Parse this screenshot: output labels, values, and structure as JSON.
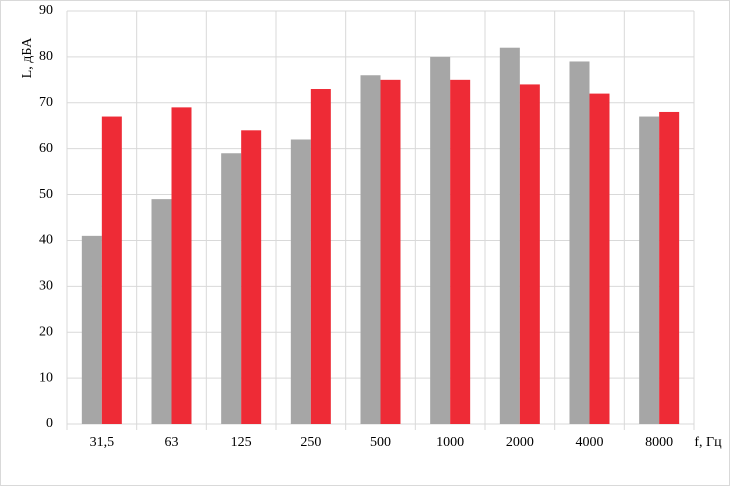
{
  "chart_data": {
    "type": "bar",
    "y_label": "L, дБА",
    "x_label": "f, Гц",
    "categories": [
      "31,5",
      "63",
      "125",
      "250",
      "500",
      "1000",
      "2000",
      "4000",
      "8000"
    ],
    "series": [
      {
        "color": "#a6a6a6",
        "values": [
          41,
          49,
          59,
          62,
          76,
          80,
          82,
          79,
          67
        ]
      },
      {
        "color": "#ee2b36",
        "values": [
          67,
          69,
          64,
          73,
          75,
          75,
          74,
          72,
          68
        ]
      }
    ],
    "ylim": [
      0,
      90
    ],
    "yticks": [
      0,
      10,
      20,
      30,
      40,
      50,
      60,
      70,
      80,
      90
    ],
    "grid": true
  }
}
